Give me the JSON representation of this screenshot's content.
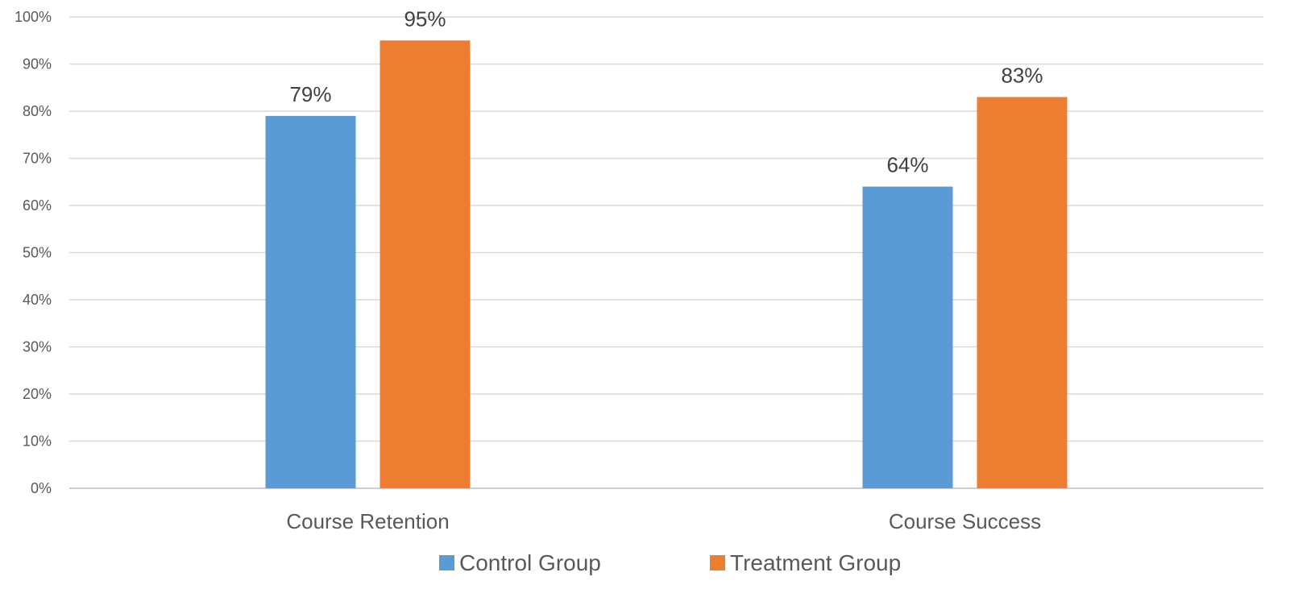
{
  "chart_data": {
    "type": "bar",
    "categories": [
      "Course Retention",
      "Course Success"
    ],
    "series": [
      {
        "name": "Control Group",
        "values": [
          79,
          64
        ],
        "labels": [
          "79%",
          "64%"
        ],
        "color": "#5B9BD5"
      },
      {
        "name": "Treatment Group",
        "values": [
          95,
          83
        ],
        "labels": [
          "95%",
          "83%"
        ],
        "color": "#ED7D31"
      }
    ],
    "ylim": [
      0,
      100
    ],
    "yticks": [
      0,
      10,
      20,
      30,
      40,
      50,
      60,
      70,
      80,
      90,
      100
    ],
    "ytick_labels": [
      "0%",
      "10%",
      "20%",
      "30%",
      "40%",
      "50%",
      "60%",
      "70%",
      "80%",
      "90%",
      "100%"
    ],
    "grid": true,
    "legend": "bottom-center"
  }
}
